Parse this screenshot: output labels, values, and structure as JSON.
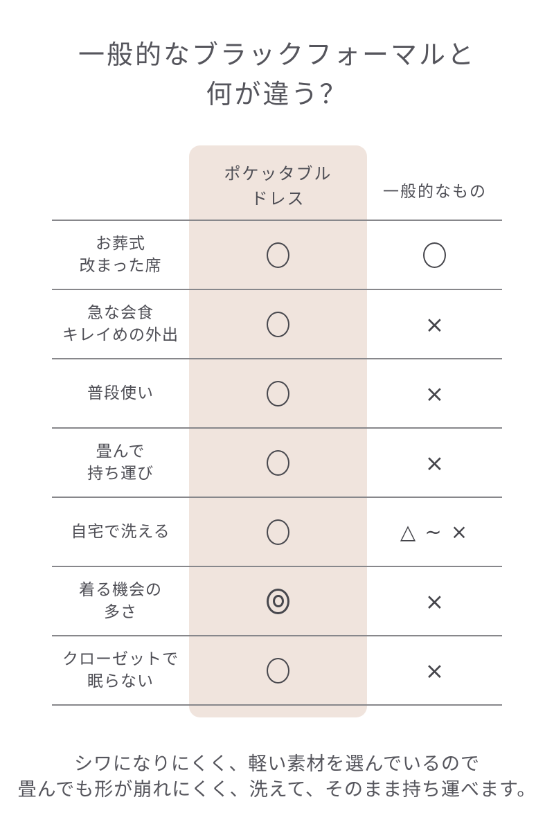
{
  "title": {
    "line1": "一般的なブラックフォーマルと",
    "line2": "何が違う？"
  },
  "table": {
    "col_pocketable": {
      "line1": "ポケッタブル",
      "line2": "ドレス"
    },
    "col_general": "一般的なもの",
    "rows": [
      {
        "label_lines": [
          "お葬式",
          "改まった席"
        ],
        "pocketable": "circle",
        "general": "circle"
      },
      {
        "label_lines": [
          "急な会食",
          "キレイめの外出"
        ],
        "pocketable": "circle",
        "general": "cross"
      },
      {
        "label_lines": [
          "普段使い"
        ],
        "pocketable": "circle",
        "general": "cross"
      },
      {
        "label_lines": [
          "畳んで",
          "持ち運び"
        ],
        "pocketable": "circle",
        "general": "cross"
      },
      {
        "label_lines": [
          "自宅で洗える"
        ],
        "pocketable": "circle",
        "general": "triangle_to_cross"
      },
      {
        "label_lines": [
          "着る機会の",
          "多さ"
        ],
        "pocketable": "double_circle",
        "general": "cross"
      },
      {
        "label_lines": [
          "クローゼットで",
          "眠らない"
        ],
        "pocketable": "circle",
        "general": "cross"
      }
    ]
  },
  "symbols": {
    "circle": "○",
    "double_circle": "◎",
    "cross": "×",
    "triangle_to_cross": "△ ∼ ×"
  },
  "footer": {
    "line1": "シワになりにくく、軽い素材を選んでいるので",
    "line2": "畳んでも形が崩れにくく、洗えて、そのまま持ち運べます。"
  },
  "colors": {
    "highlight_bg": "#f0e4dd",
    "text": "#54545b",
    "divider_line": "#87878b",
    "mark": "#47474d"
  }
}
